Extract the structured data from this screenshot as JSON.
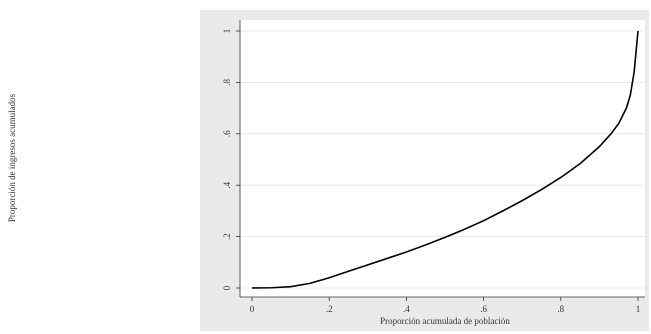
{
  "chart_data": {
    "type": "line",
    "title": "",
    "xlabel": "Proporción acumulada de población",
    "ylabel": "Proporción de ingresos acumulados",
    "xlim": [
      0,
      1
    ],
    "ylim": [
      0,
      1
    ],
    "grid": true,
    "x_ticks": [
      0,
      0.2,
      0.4,
      0.6,
      0.8,
      1
    ],
    "x_tick_labels": [
      "0",
      ".2",
      ".4",
      ".6",
      ".8",
      "1"
    ],
    "y_ticks": [
      0,
      0.2,
      0.4,
      0.6,
      0.8,
      1
    ],
    "y_tick_labels": [
      "0",
      ".2",
      ".4",
      ".6",
      ".8",
      "1"
    ],
    "series": [
      {
        "color": "#000000",
        "x": [
          0,
          0.05,
          0.1,
          0.15,
          0.2,
          0.25,
          0.3,
          0.35,
          0.4,
          0.45,
          0.5,
          0.55,
          0.6,
          0.65,
          0.7,
          0.75,
          0.8,
          0.85,
          0.9,
          0.93,
          0.95,
          0.97,
          0.98,
          0.99,
          1.0
        ],
        "y": [
          0,
          0.001,
          0.005,
          0.018,
          0.04,
          0.065,
          0.09,
          0.115,
          0.14,
          0.168,
          0.197,
          0.228,
          0.262,
          0.3,
          0.34,
          0.383,
          0.43,
          0.484,
          0.55,
          0.6,
          0.64,
          0.7,
          0.75,
          0.84,
          1.0
        ]
      }
    ]
  }
}
